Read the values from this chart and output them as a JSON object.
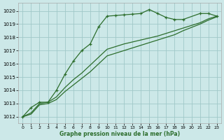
{
  "title": "Graphe pression niveau de la mer (hPa)",
  "bg_color": "#cce8e8",
  "grid_color": "#a0c8c8",
  "line_color": "#2d6e2d",
  "xlim": [
    -0.5,
    23.5
  ],
  "ylim": [
    1011.5,
    1020.6
  ],
  "yticks": [
    1012,
    1013,
    1014,
    1015,
    1016,
    1017,
    1018,
    1019,
    1020
  ],
  "xticks": [
    0,
    1,
    2,
    3,
    4,
    5,
    6,
    7,
    8,
    9,
    10,
    11,
    12,
    13,
    14,
    15,
    16,
    17,
    18,
    19,
    20,
    21,
    22,
    23
  ],
  "series": [
    {
      "x": [
        0,
        1,
        2,
        3,
        4,
        5,
        6,
        7,
        8,
        9,
        10,
        11,
        12,
        13,
        14,
        15,
        16,
        17,
        18,
        19,
        21,
        22,
        23
      ],
      "y": [
        1012.0,
        1012.7,
        1013.1,
        1013.1,
        1014.0,
        1015.2,
        1016.2,
        1017.0,
        1017.5,
        1018.8,
        1019.6,
        1019.65,
        1019.7,
        1019.75,
        1019.8,
        1020.1,
        1019.8,
        1019.5,
        1019.35,
        1019.35,
        1019.8,
        1019.8,
        1019.6
      ],
      "has_markers": true
    },
    {
      "x": [
        0,
        1,
        2,
        3,
        4,
        5,
        6,
        7,
        8,
        9,
        10,
        11,
        12,
        13,
        14,
        15,
        16,
        17,
        18,
        19,
        20,
        21,
        22,
        23
      ],
      "y": [
        1012.0,
        1012.3,
        1013.0,
        1013.1,
        1013.5,
        1014.2,
        1014.8,
        1015.3,
        1015.9,
        1016.5,
        1017.1,
        1017.3,
        1017.5,
        1017.65,
        1017.8,
        1017.95,
        1018.1,
        1018.3,
        1018.5,
        1018.7,
        1018.9,
        1019.1,
        1019.4,
        1019.6
      ],
      "has_markers": false
    },
    {
      "x": [
        0,
        1,
        2,
        3,
        4,
        5,
        6,
        7,
        8,
        9,
        10,
        11,
        12,
        13,
        14,
        15,
        16,
        17,
        18,
        19,
        20,
        21,
        22,
        23
      ],
      "y": [
        1012.0,
        1012.2,
        1012.9,
        1013.0,
        1013.3,
        1013.9,
        1014.4,
        1014.9,
        1015.4,
        1016.0,
        1016.6,
        1016.8,
        1017.0,
        1017.2,
        1017.4,
        1017.6,
        1017.8,
        1018.0,
        1018.2,
        1018.5,
        1018.75,
        1019.0,
        1019.3,
        1019.55
      ],
      "has_markers": false
    }
  ]
}
